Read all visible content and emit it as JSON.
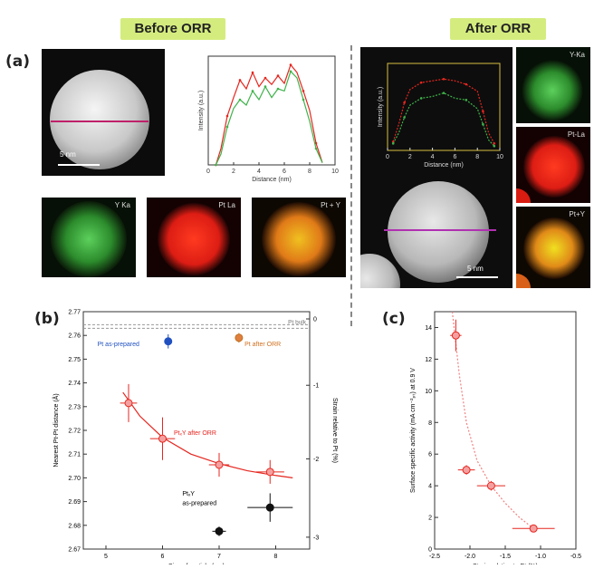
{
  "headers": {
    "before": "Before ORR",
    "after": "After ORR"
  },
  "panels": {
    "a": "(a)",
    "b": "(b)",
    "c": "(c)"
  },
  "scale_bars": {
    "before": "5 nm",
    "after": "5 nm"
  },
  "maps": {
    "before": [
      "Y Ka",
      "Pt La",
      "Pt + Y"
    ],
    "after": [
      "Y-Ka",
      "Pt-La",
      "Pt+Y"
    ]
  },
  "colors": {
    "green": "#3fb24a",
    "red": "#e5261f",
    "mix": "#e0a020",
    "banner": "#d4ec7e",
    "fit": "#f08080"
  },
  "chart_data": [
    {
      "type": "line",
      "panel": "a-before-profile",
      "xlabel": "Distance (nm)",
      "ylabel": "Intensity (a.u.)",
      "xlim": [
        0,
        10
      ],
      "xticks": [
        0,
        2,
        4,
        6,
        8,
        10
      ],
      "series": [
        {
          "values": [
            [
              0.6,
              0
            ],
            [
              1,
              0.15
            ],
            [
              1.5,
              0.45
            ],
            [
              2,
              0.62
            ],
            [
              2.5,
              0.78
            ],
            [
              3,
              0.7
            ],
            [
              3.5,
              0.85
            ],
            [
              4,
              0.72
            ],
            [
              4.5,
              0.8
            ],
            [
              5,
              0.74
            ],
            [
              5.5,
              0.82
            ],
            [
              6,
              0.75
            ],
            [
              6.5,
              0.92
            ],
            [
              7,
              0.85
            ],
            [
              7.5,
              0.68
            ],
            [
              8,
              0.5
            ],
            [
              8.5,
              0.2
            ],
            [
              9,
              0.02
            ]
          ]
        },
        {
          "values": [
            [
              0.6,
              0
            ],
            [
              1,
              0.1
            ],
            [
              1.5,
              0.35
            ],
            [
              2,
              0.52
            ],
            [
              2.5,
              0.6
            ],
            [
              3,
              0.55
            ],
            [
              3.5,
              0.68
            ],
            [
              4,
              0.6
            ],
            [
              4.5,
              0.72
            ],
            [
              5,
              0.62
            ],
            [
              5.5,
              0.7
            ],
            [
              6,
              0.68
            ],
            [
              6.5,
              0.86
            ],
            [
              7,
              0.8
            ],
            [
              7.5,
              0.6
            ],
            [
              8,
              0.4
            ],
            [
              8.5,
              0.15
            ],
            [
              9,
              0.02
            ]
          ]
        }
      ]
    },
    {
      "type": "line",
      "panel": "a-after-profile",
      "xlabel": "Distance (nm)",
      "ylabel": "Intensity (a.u.)",
      "xlim": [
        0,
        10
      ],
      "xticks": [
        0,
        2,
        4,
        6,
        8,
        10
      ],
      "series": [
        {
          "values": [
            [
              0.5,
              0.1
            ],
            [
              1,
              0.3
            ],
            [
              1.5,
              0.55
            ],
            [
              2,
              0.7
            ],
            [
              3,
              0.78
            ],
            [
              4,
              0.8
            ],
            [
              5,
              0.82
            ],
            [
              6,
              0.8
            ],
            [
              7,
              0.76
            ],
            [
              8,
              0.68
            ],
            [
              8.5,
              0.45
            ],
            [
              9,
              0.2
            ],
            [
              9.5,
              0.08
            ]
          ]
        },
        {
          "values": [
            [
              0.5,
              0.08
            ],
            [
              1,
              0.2
            ],
            [
              1.5,
              0.38
            ],
            [
              2,
              0.52
            ],
            [
              3,
              0.6
            ],
            [
              4,
              0.62
            ],
            [
              5,
              0.66
            ],
            [
              6,
              0.6
            ],
            [
              7,
              0.58
            ],
            [
              8,
              0.48
            ],
            [
              8.5,
              0.3
            ],
            [
              9,
              0.12
            ],
            [
              9.5,
              0.05
            ]
          ]
        }
      ]
    },
    {
      "type": "scatter",
      "panel": "b",
      "xlabel": "Size of particle (nm)",
      "ylabel": "Nearest Pt-Pt distance (Å)",
      "y2label": "Strain relative to Pt (%)",
      "xlim": [
        4.6,
        8.6
      ],
      "ylim": [
        2.67,
        2.77
      ],
      "xticks": [
        5,
        6,
        7,
        8
      ],
      "yticks": [
        2.67,
        2.68,
        2.69,
        2.7,
        2.71,
        2.72,
        2.73,
        2.74,
        2.75,
        2.76,
        2.77
      ],
      "y2ticks": [
        0,
        -1,
        -2,
        -3
      ],
      "reference_line": {
        "label": "Pt bulk",
        "y": 2.7645
      },
      "annotations": [
        "Pt as-prepared",
        "Pt after ORR",
        "PtₓY after ORR",
        "PtₓY",
        "as-prepared"
      ],
      "series": [
        {
          "name": "PtₓY after ORR",
          "points": [
            {
              "x": 5.4,
              "y": 2.7315,
              "xerr": 0.15,
              "yerr": 0.008
            },
            {
              "x": 6.0,
              "y": 2.7165,
              "xerr": 0.22,
              "yerr": 0.009
            },
            {
              "x": 7.0,
              "y": 2.7055,
              "xerr": 0.18,
              "yerr": 0.005
            },
            {
              "x": 7.9,
              "y": 2.7025,
              "xerr": 0.25,
              "yerr": 0.005
            }
          ]
        },
        {
          "name": "PtₓY as-prepared",
          "points": [
            {
              "x": 7.0,
              "y": 2.6775,
              "xerr": 0.12,
              "yerr": 0.002
            },
            {
              "x": 7.9,
              "y": 2.6875,
              "xerr": 0.4,
              "yerr": 0.006
            }
          ]
        },
        {
          "name": "Pt as-prepared",
          "points": [
            {
              "x": 6.1,
              "y": 2.7575,
              "xerr": 0.05,
              "yerr": 0.003
            }
          ]
        },
        {
          "name": "Pt after ORR",
          "points": [
            {
              "x": 7.35,
              "y": 2.759,
              "xerr": 0.05,
              "yerr": 0.002
            }
          ]
        }
      ],
      "fit": [
        [
          5.3,
          2.736
        ],
        [
          5.6,
          2.726
        ],
        [
          6.0,
          2.717
        ],
        [
          6.5,
          2.71
        ],
        [
          7.0,
          2.706
        ],
        [
          7.5,
          2.703
        ],
        [
          8.0,
          2.701
        ],
        [
          8.3,
          2.7
        ]
      ]
    },
    {
      "type": "scatter",
      "panel": "c",
      "xlabel": "Strain relative to Pt (%)",
      "ylabel": "Surface specific activity (mA cm⁻²ₚₜ) at 0.9 V",
      "xlim": [
        -2.5,
        -0.5
      ],
      "ylim": [
        0,
        15
      ],
      "xticks": [
        -2.5,
        -2.0,
        -1.5,
        -1.0,
        -0.5
      ],
      "yticks": [
        0,
        2,
        4,
        6,
        8,
        10,
        12,
        14
      ],
      "series": [
        {
          "points": [
            {
              "x": -2.2,
              "y": 13.5,
              "xerr": 0.08,
              "yerr": 1.0
            },
            {
              "x": -2.05,
              "y": 5.0,
              "xerr": 0.12,
              "yerr": 0.3
            },
            {
              "x": -1.7,
              "y": 4.0,
              "xerr": 0.2,
              "yerr": 0.3
            },
            {
              "x": -1.1,
              "y": 1.3,
              "xerr": 0.3,
              "yerr": 0.2
            }
          ]
        }
      ],
      "fit": [
        [
          -2.25,
          15
        ],
        [
          -2.15,
          11
        ],
        [
          -2.05,
          8
        ],
        [
          -1.9,
          5.6
        ],
        [
          -1.7,
          4.0
        ],
        [
          -1.5,
          2.9
        ],
        [
          -1.3,
          2.0
        ],
        [
          -1.1,
          1.3
        ]
      ]
    }
  ]
}
